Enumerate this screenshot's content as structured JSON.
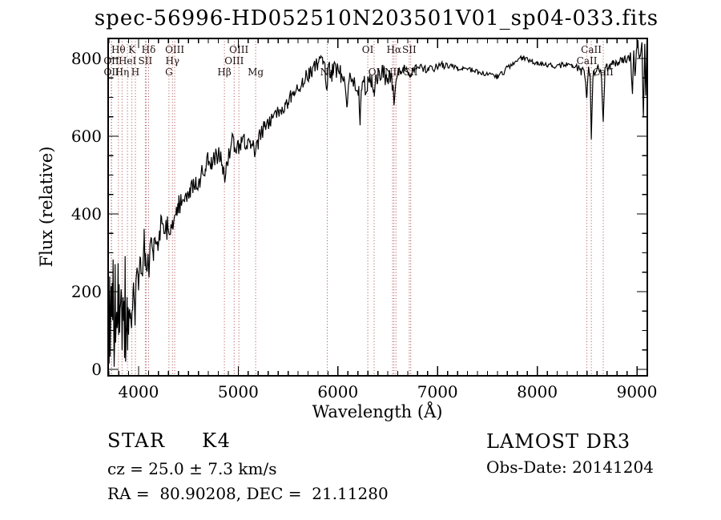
{
  "title": "spec-56996-HD052510N203501V01_sp04-033.fits",
  "colors": {
    "background": "#ffffff",
    "frame": "#000000",
    "spectrum": "#000000",
    "marker_line": "#a84848",
    "line_label": "#201010",
    "text": "#000000"
  },
  "annotations": {
    "class_label": "STAR     K4",
    "cz": "cz = 25.0 ± 7.3 km/s",
    "radec": "RA =  80.90208, DEC =  21.11280",
    "survey": "LAMOST DR3",
    "obs_date": "Obs-Date: 20141204"
  },
  "chart_data": {
    "type": "line",
    "title": "spec-56996-HD052510N203501V01_sp04-033.fits",
    "xlabel": "Wavelength (Å)",
    "ylabel": "Flux (relative)",
    "xlim": [
      3695,
      9104
    ],
    "ylim": [
      -16.5,
      851.5
    ],
    "x_ticks": [
      4000,
      5000,
      6000,
      7000,
      8000,
      9000
    ],
    "y_ticks": [
      0,
      200,
      400,
      600,
      800
    ],
    "x_minor_step": 100,
    "y_minor_step": 50,
    "grid": false,
    "legend": null,
    "spectral_lines": [
      {
        "label": "Hθ",
        "wavelength": 3798,
        "row": 1
      },
      {
        "label": "K",
        "wavelength": 3933,
        "row": 1
      },
      {
        "label": "Hδ",
        "wavelength": 4101,
        "row": 1
      },
      {
        "label": "OIII",
        "wavelength": 4363,
        "row": 1
      },
      {
        "label": "OIII",
        "wavelength": 5007,
        "row": 1
      },
      {
        "label": "OI",
        "wavelength": 6300,
        "row": 1
      },
      {
        "label": "Hα",
        "wavelength": 6563,
        "row": 1
      },
      {
        "label": "SII",
        "wavelength": 6716,
        "row": 1
      },
      {
        "label": "CaII",
        "wavelength": 8542,
        "row": 1
      },
      {
        "label": "OII",
        "wavelength": 3727,
        "row": 2
      },
      {
        "label": "HeI",
        "wavelength": 3889,
        "row": 2
      },
      {
        "label": "SII",
        "wavelength": 4068,
        "row": 2
      },
      {
        "label": "Hγ",
        "wavelength": 4340,
        "row": 2
      },
      {
        "label": "OIII",
        "wavelength": 4959,
        "row": 2
      },
      {
        "label": "CaII",
        "wavelength": 8498,
        "row": 2
      },
      {
        "label": "OII",
        "wavelength": 3729,
        "row": 3
      },
      {
        "label": "Hη",
        "wavelength": 3835,
        "row": 3
      },
      {
        "label": "H",
        "wavelength": 3968,
        "row": 3
      },
      {
        "label": "G",
        "wavelength": 4305,
        "row": 3
      },
      {
        "label": "Hβ",
        "wavelength": 4861,
        "row": 3
      },
      {
        "label": "Mg",
        "wavelength": 5175,
        "row": 3
      },
      {
        "label": "Na",
        "wavelength": 5893,
        "row": 3
      },
      {
        "label": "OI",
        "wavelength": 6363,
        "row": 3
      },
      {
        "label": "NII",
        "wavelength": 6548,
        "row": 3
      },
      {
        "label": "SII",
        "wavelength": 6731,
        "row": 3
      },
      {
        "label": "CaII",
        "wavelength": 8662,
        "row": 3
      },
      {
        "label": "",
        "wavelength": 4076,
        "row": 0
      },
      {
        "label": "",
        "wavelength": 6583,
        "row": 0
      }
    ],
    "spectrum": {
      "seed": 20141204,
      "sample_step_angstrom": 10,
      "anchors": [
        [
          3695,
          60
        ],
        [
          3698,
          5
        ],
        [
          3702,
          150
        ],
        [
          3706,
          40
        ],
        [
          3710,
          200
        ],
        [
          3715,
          80
        ],
        [
          3720,
          60
        ],
        [
          3725,
          190
        ],
        [
          3730,
          100
        ],
        [
          3735,
          210
        ],
        [
          3740,
          90
        ],
        [
          3745,
          240
        ],
        [
          3750,
          120
        ],
        [
          3755,
          15
        ],
        [
          3760,
          150
        ],
        [
          3765,
          220
        ],
        [
          3770,
          100
        ],
        [
          3775,
          180
        ],
        [
          3780,
          70
        ],
        [
          3785,
          160
        ],
        [
          3790,
          110
        ],
        [
          3795,
          200
        ],
        [
          3800,
          130
        ],
        [
          3805,
          180
        ],
        [
          3810,
          90
        ],
        [
          3815,
          210
        ],
        [
          3820,
          140
        ],
        [
          3825,
          250
        ],
        [
          3830,
          170
        ],
        [
          3835,
          120
        ],
        [
          3840,
          200
        ],
        [
          3845,
          260
        ],
        [
          3850,
          130
        ],
        [
          3855,
          180
        ],
        [
          3860,
          100
        ],
        [
          3865,
          240
        ],
        [
          3870,
          30
        ],
        [
          3875,
          150
        ],
        [
          3880,
          80
        ],
        [
          3885,
          170
        ],
        [
          3890,
          120
        ],
        [
          3895,
          190
        ],
        [
          3900,
          140
        ],
        [
          3910,
          180
        ],
        [
          3920,
          150
        ],
        [
          3930,
          110
        ],
        [
          3940,
          170
        ],
        [
          3950,
          200
        ],
        [
          3960,
          150
        ],
        [
          3968,
          140
        ],
        [
          3975,
          190
        ],
        [
          3985,
          230
        ],
        [
          4000,
          240
        ],
        [
          4020,
          260
        ],
        [
          4040,
          250
        ],
        [
          4056,
          330
        ],
        [
          4070,
          270
        ],
        [
          4085,
          290
        ],
        [
          4101,
          250
        ],
        [
          4115,
          300
        ],
        [
          4130,
          310
        ],
        [
          4150,
          300
        ],
        [
          4170,
          330
        ],
        [
          4190,
          320
        ],
        [
          4210,
          340
        ],
        [
          4230,
          380
        ],
        [
          4250,
          350
        ],
        [
          4270,
          370
        ],
        [
          4290,
          360
        ],
        [
          4305,
          340
        ],
        [
          4320,
          380
        ],
        [
          4340,
          350
        ],
        [
          4363,
          390
        ],
        [
          4380,
          400
        ],
        [
          4400,
          420
        ],
        [
          4430,
          435
        ],
        [
          4460,
          430
        ],
        [
          4490,
          450
        ],
        [
          4520,
          460
        ],
        [
          4550,
          475
        ],
        [
          4580,
          470
        ],
        [
          4610,
          490
        ],
        [
          4640,
          510
        ],
        [
          4670,
          525
        ],
        [
          4700,
          540
        ],
        [
          4730,
          535
        ],
        [
          4760,
          550
        ],
        [
          4790,
          545
        ],
        [
          4820,
          548
        ],
        [
          4840,
          532
        ],
        [
          4861,
          490
        ],
        [
          4880,
          540
        ],
        [
          4900,
          552
        ],
        [
          4920,
          560
        ],
        [
          4940,
          600
        ],
        [
          4960,
          572
        ],
        [
          4980,
          562
        ],
        [
          5000,
          572
        ],
        [
          5030,
          580
        ],
        [
          5060,
          586
        ],
        [
          5090,
          582
        ],
        [
          5120,
          588
        ],
        [
          5150,
          578
        ],
        [
          5175,
          556
        ],
        [
          5200,
          585
        ],
        [
          5230,
          610
        ],
        [
          5260,
          620
        ],
        [
          5290,
          632
        ],
        [
          5320,
          640
        ],
        [
          5350,
          652
        ],
        [
          5380,
          658
        ],
        [
          5410,
          666
        ],
        [
          5440,
          674
        ],
        [
          5470,
          678
        ],
        [
          5500,
          692
        ],
        [
          5530,
          702
        ],
        [
          5560,
          712
        ],
        [
          5590,
          722
        ],
        [
          5620,
          732
        ],
        [
          5650,
          742
        ],
        [
          5680,
          752
        ],
        [
          5710,
          762
        ],
        [
          5740,
          768
        ],
        [
          5770,
          780
        ],
        [
          5800,
          788
        ],
        [
          5830,
          795
        ],
        [
          5850,
          800
        ],
        [
          5870,
          780
        ],
        [
          5890,
          710
        ],
        [
          5900,
          782
        ],
        [
          5920,
          770
        ],
        [
          5940,
          762
        ],
        [
          5960,
          775
        ],
        [
          5980,
          766
        ],
        [
          6000,
          770
        ],
        [
          6030,
          760
        ],
        [
          6060,
          756
        ],
        [
          6090,
          692
        ],
        [
          6120,
          750
        ],
        [
          6150,
          742
        ],
        [
          6180,
          732
        ],
        [
          6210,
          722
        ],
        [
          6223,
          646
        ],
        [
          6240,
          732
        ],
        [
          6260,
          742
        ],
        [
          6280,
          702
        ],
        [
          6300,
          736
        ],
        [
          6320,
          746
        ],
        [
          6340,
          740
        ],
        [
          6363,
          722
        ],
        [
          6380,
          750
        ],
        [
          6400,
          760
        ],
        [
          6420,
          766
        ],
        [
          6440,
          770
        ],
        [
          6460,
          762
        ],
        [
          6480,
          752
        ],
        [
          6500,
          756
        ],
        [
          6520,
          762
        ],
        [
          6540,
          742
        ],
        [
          6563,
          696
        ],
        [
          6580,
          752
        ],
        [
          6600,
          766
        ],
        [
          6630,
          770
        ],
        [
          6660,
          772
        ],
        [
          6690,
          776
        ],
        [
          6716,
          762
        ],
        [
          6731,
          752
        ],
        [
          6760,
          772
        ],
        [
          6790,
          776
        ],
        [
          6820,
          772
        ],
        [
          6850,
          776
        ],
        [
          6880,
          772
        ],
        [
          6910,
          770
        ],
        [
          6950,
          776
        ],
        [
          7000,
          778
        ],
        [
          7050,
          781
        ],
        [
          7100,
          783
        ],
        [
          7150,
          779
        ],
        [
          7200,
          776
        ],
        [
          7250,
          773
        ],
        [
          7300,
          771
        ],
        [
          7350,
          769
        ],
        [
          7400,
          766
        ],
        [
          7450,
          763
        ],
        [
          7500,
          759
        ],
        [
          7550,
          756
        ],
        [
          7600,
          753
        ],
        [
          7650,
          761
        ],
        [
          7700,
          776
        ],
        [
          7750,
          786
        ],
        [
          7800,
          796
        ],
        [
          7850,
          801
        ],
        [
          7900,
          799
        ],
        [
          7950,
          793
        ],
        [
          8000,
          789
        ],
        [
          8050,
          785
        ],
        [
          8100,
          783
        ],
        [
          8150,
          781
        ],
        [
          8200,
          779
        ],
        [
          8250,
          783
        ],
        [
          8300,
          785
        ],
        [
          8350,
          781
        ],
        [
          8400,
          779
        ],
        [
          8440,
          766
        ],
        [
          8470,
          776
        ],
        [
          8498,
          700
        ],
        [
          8515,
          770
        ],
        [
          8530,
          760
        ],
        [
          8542,
          598
        ],
        [
          8558,
          755
        ],
        [
          8580,
          770
        ],
        [
          8610,
          776
        ],
        [
          8640,
          770
        ],
        [
          8662,
          640
        ],
        [
          8680,
          770
        ],
        [
          8700,
          778
        ],
        [
          8730,
          782
        ],
        [
          8760,
          786
        ],
        [
          8790,
          790
        ],
        [
          8820,
          793
        ],
        [
          8850,
          796
        ],
        [
          8880,
          798
        ],
        [
          8910,
          801
        ],
        [
          8935,
          806
        ],
        [
          8955,
          700
        ],
        [
          8968,
          820
        ],
        [
          8980,
          748
        ],
        [
          8995,
          812
        ],
        [
          9010,
          836
        ],
        [
          9030,
          800
        ],
        [
          9050,
          845
        ],
        [
          9065,
          640
        ],
        [
          9078,
          832
        ],
        [
          9088,
          700
        ],
        [
          9100,
          846
        ]
      ],
      "noise_segments": [
        [
          3695,
          3900,
          80
        ],
        [
          3900,
          4100,
          45
        ],
        [
          4100,
          4450,
          35
        ],
        [
          4450,
          4900,
          26
        ],
        [
          4900,
          5400,
          20
        ],
        [
          5400,
          5900,
          20
        ],
        [
          5900,
          6600,
          24
        ],
        [
          6600,
          7100,
          11
        ],
        [
          7100,
          8400,
          7
        ],
        [
          8400,
          8700,
          10
        ],
        [
          8700,
          9104,
          12
        ]
      ]
    }
  }
}
